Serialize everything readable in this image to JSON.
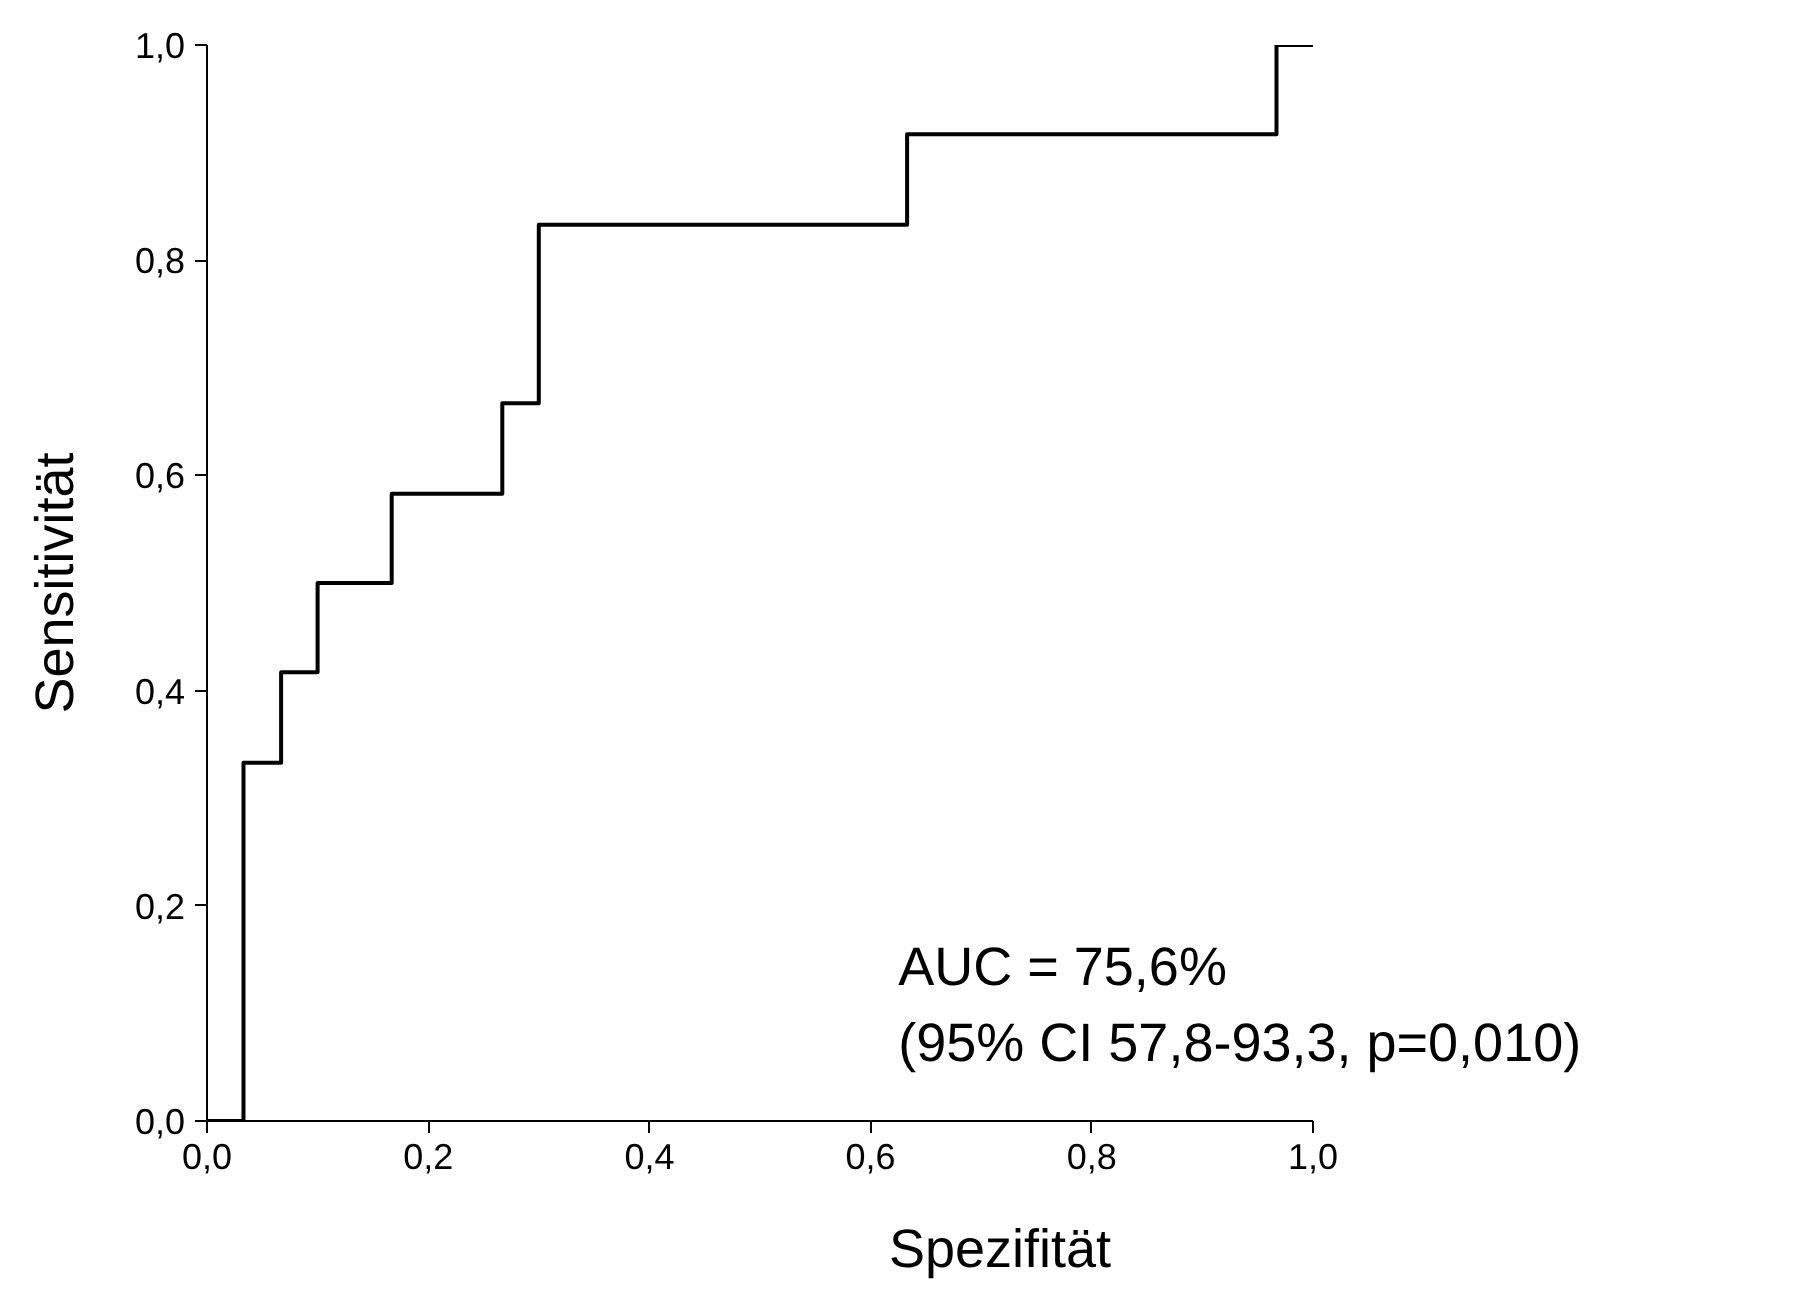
{
  "chart_data": {
    "type": "step",
    "xlabel": "Spezifität",
    "ylabel": "Sensitivität",
    "x": [
      0,
      0.033,
      0.067,
      0.1,
      0.167,
      0.267,
      0.3,
      0.633,
      0.967,
      1.0
    ],
    "series": [
      {
        "color": "#000000",
        "values": [
          0,
          0.333,
          0.417,
          0.5,
          0.583,
          0.667,
          0.833,
          0.917,
          1.0,
          1.0
        ]
      }
    ],
    "xlim": [
      0,
      1
    ],
    "ylim": [
      0,
      1
    ],
    "xticks": [
      {
        "value": 0,
        "label": "0,0"
      },
      {
        "value": 0.2,
        "label": "0,2"
      },
      {
        "value": 0.4,
        "label": "0,4"
      },
      {
        "value": 0.6,
        "label": "0,6"
      },
      {
        "value": 0.8,
        "label": "0,8"
      },
      {
        "value": 1,
        "label": "1,0"
      }
    ],
    "yticks": [
      {
        "value": 0,
        "label": "0,0"
      },
      {
        "value": 0.2,
        "label": "0,2"
      },
      {
        "value": 0.4,
        "label": "0,4"
      },
      {
        "value": 0.6,
        "label": "0,6"
      },
      {
        "value": 0.8,
        "label": "0,8"
      },
      {
        "value": 1,
        "label": "1,0"
      }
    ],
    "annotations": [
      "AUC = 75,6%",
      "(95% CI 57,8-93,3, p=0,010)"
    ]
  }
}
